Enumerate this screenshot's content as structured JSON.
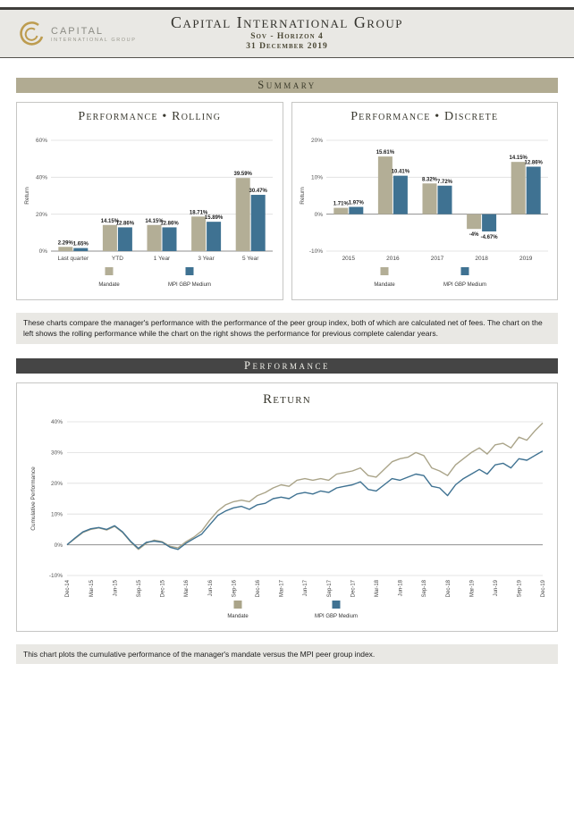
{
  "header": {
    "logo_name": "CAPITAL",
    "logo_subname": "INTERNATIONAL GROUP",
    "title": "Capital International Group",
    "subtitle": "Sov - Horizon 4",
    "date": "31 December 2019"
  },
  "sections": {
    "summary_label": "Summary",
    "performance_label": "Performance"
  },
  "notes": {
    "summary_note": "These charts compare the manager's performance with the performance of the peer group index, both of which are calculated net of fees. The chart on the left shows the rolling performance while the chart on the right shows the performance for previous complete calendar years.",
    "performance_note": "This chart plots the cumulative performance of the manager's mandate versus the MPI peer group index."
  },
  "colors": {
    "mandate": "#b3ae96",
    "mpi": "#3f7292",
    "summary_bar": "#b1ab92",
    "performance_bar": "#454545",
    "logo_gold": "#bd9c4f"
  },
  "chart_data": [
    {
      "id": "rolling",
      "type": "bar",
      "title": "Performance • Rolling",
      "ylabel": "Return",
      "ylim": [
        0,
        60
      ],
      "yticks": [
        0,
        20,
        40,
        60
      ],
      "grid": true,
      "legend_position": "bottom",
      "categories": [
        "Last quarter",
        "YTD",
        "1 Year",
        "3 Year",
        "5 Year"
      ],
      "series": [
        {
          "name": "Mandate",
          "color": "#b3ae96",
          "values": [
            2.29,
            14.15,
            14.15,
            18.71,
            39.59
          ],
          "labels": [
            "2.29%",
            "14.15%",
            "14.15%",
            "18.71%",
            "39.59%"
          ]
        },
        {
          "name": "MPI GBP Medium",
          "color": "#3f7292",
          "values": [
            1.65,
            12.86,
            12.86,
            15.89,
            30.47
          ],
          "labels": [
            "1.65%",
            "12.86%",
            "12.86%",
            "15.89%",
            "30.47%"
          ]
        }
      ]
    },
    {
      "id": "discrete",
      "type": "bar",
      "title": "Performance • Discrete",
      "ylabel": "Return",
      "ylim": [
        -10,
        20
      ],
      "yticks": [
        -10,
        0,
        10,
        20
      ],
      "grid": true,
      "legend_position": "bottom",
      "categories": [
        "2015",
        "2016",
        "2017",
        "2018",
        "2019"
      ],
      "series": [
        {
          "name": "Mandate",
          "color": "#b3ae96",
          "values": [
            1.71,
            15.61,
            8.32,
            -4.0,
            14.15
          ],
          "labels": [
            "1.71%",
            "15.61%",
            "8.32%",
            "-4%",
            "14.15%"
          ]
        },
        {
          "name": "MPI GBP Medium",
          "color": "#3f7292",
          "values": [
            1.97,
            10.41,
            7.72,
            -4.67,
            12.86
          ],
          "labels": [
            "1.97%",
            "10.41%",
            "7.72%",
            "-4.67%",
            "12.86%"
          ]
        }
      ]
    },
    {
      "id": "return",
      "type": "line",
      "title": "Return",
      "ylabel": "Cumulative Performance",
      "ylim": [
        -10,
        40
      ],
      "yticks": [
        -10,
        0,
        10,
        20,
        30,
        40
      ],
      "grid": true,
      "legend_position": "bottom",
      "x": [
        "Dec-14",
        "Jan-15",
        "Feb-15",
        "Mar-15",
        "Apr-15",
        "May-15",
        "Jun-15",
        "Jul-15",
        "Aug-15",
        "Sep-15",
        "Oct-15",
        "Nov-15",
        "Dec-15",
        "Jan-16",
        "Feb-16",
        "Mar-16",
        "Apr-16",
        "May-16",
        "Jun-16",
        "Jul-16",
        "Aug-16",
        "Sep-16",
        "Oct-16",
        "Nov-16",
        "Dec-16",
        "Jan-17",
        "Feb-17",
        "Mar-17",
        "Apr-17",
        "May-17",
        "Jun-17",
        "Jul-17",
        "Aug-17",
        "Sep-17",
        "Oct-17",
        "Nov-17",
        "Dec-17",
        "Jan-18",
        "Feb-18",
        "Mar-18",
        "Apr-18",
        "May-18",
        "Jun-18",
        "Jul-18",
        "Aug-18",
        "Sep-18",
        "Oct-18",
        "Nov-18",
        "Dec-18",
        "Jan-19",
        "Feb-19",
        "Mar-19",
        "Apr-19",
        "May-19",
        "Jun-19",
        "Jul-19",
        "Aug-19",
        "Sep-19",
        "Oct-19",
        "Nov-19",
        "Dec-19"
      ],
      "xticks": [
        "Dec-14",
        "Mar-15",
        "Jun-15",
        "Sep-15",
        "Dec-15",
        "Mar-16",
        "Jun-16",
        "Sep-16",
        "Dec-16",
        "Mar-17",
        "Jun-17",
        "Sep-17",
        "Dec-17",
        "Mar-18",
        "Jun-18",
        "Sep-18",
        "Dec-18",
        "Mar-19",
        "Jun-19",
        "Sep-19",
        "Dec-19"
      ],
      "series": [
        {
          "name": "Mandate",
          "color": "#aaa489",
          "values": [
            0,
            2,
            4,
            5,
            5.5,
            4.8,
            6,
            4,
            1,
            -1.5,
            0.5,
            1.5,
            1,
            -0.5,
            -1,
            1,
            2.5,
            4.5,
            8,
            11,
            13,
            14,
            14.5,
            14,
            16,
            17,
            18.5,
            19.5,
            19,
            21,
            21.5,
            21,
            21.5,
            21,
            23,
            23.5,
            24,
            25,
            22.5,
            22,
            24.5,
            27,
            28,
            28.5,
            30,
            29,
            25,
            24,
            22.5,
            26,
            28,
            30,
            31.5,
            29.5,
            32.5,
            33,
            31.5,
            35,
            34,
            37,
            39.6
          ]
        },
        {
          "name": "MPI GBP Medium",
          "color": "#3f7292",
          "values": [
            0,
            2.2,
            4.2,
            5.2,
            5.6,
            5,
            6.2,
            4.2,
            1.2,
            -1.2,
            0.8,
            1.2,
            0.8,
            -0.8,
            -1.5,
            0.5,
            2,
            3.5,
            6.5,
            9.5,
            11,
            12,
            12.5,
            11.5,
            13,
            13.5,
            15,
            15.5,
            15,
            16.5,
            17,
            16.5,
            17.5,
            17,
            18.5,
            19,
            19.5,
            20.5,
            18,
            17.5,
            19.5,
            21.5,
            21,
            22,
            23,
            22.5,
            19,
            18.5,
            16,
            19.5,
            21.5,
            23,
            24.5,
            23,
            26,
            26.5,
            25,
            28,
            27.5,
            29,
            30.5
          ]
        }
      ]
    }
  ]
}
